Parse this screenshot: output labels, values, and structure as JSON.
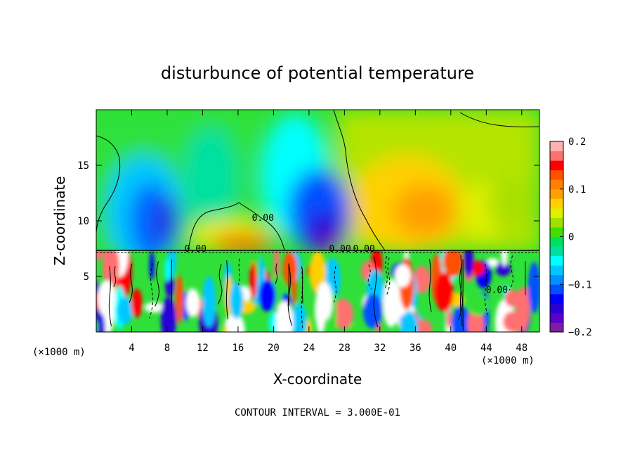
{
  "chart_data": {
    "type": "heatmap",
    "title": "disturbunce of potential temperature",
    "xlabel": "X-coordinate",
    "ylabel": "Z-coordinate",
    "x_unit_left": "(×1000 m)",
    "x_unit_right": "(×1000 m)",
    "footer": "CONTOUR INTERVAL = 3.000E-01",
    "xlim": [
      0,
      50
    ],
    "ylim": [
      0,
      20
    ],
    "x_ticks": [
      4,
      8,
      12,
      16,
      20,
      24,
      28,
      32,
      36,
      40,
      44,
      48
    ],
    "x_tick_labels": [
      "4",
      "8",
      "12",
      "16",
      "20",
      "24",
      "28",
      "32",
      "36",
      "40",
      "44",
      "48"
    ],
    "y_ticks": [
      5,
      10,
      15
    ],
    "y_tick_labels": [
      "5",
      "10",
      "15"
    ],
    "colorbar": {
      "range": [
        -0.2,
        0.2
      ],
      "tick_values": [
        0.2,
        0.1,
        0,
        -0.1,
        -0.2
      ],
      "tick_labels": [
        "0.2",
        "0.1",
        "0",
        "−0.1",
        "−0.2"
      ],
      "colors": [
        "#7a1fa2",
        "#5a00c8",
        "#2a00d8",
        "#0000ff",
        "#0050ff",
        "#0090ff",
        "#00c8ff",
        "#00ffff",
        "#00e0a0",
        "#00e060",
        "#40e000",
        "#a0e000",
        "#e0f000",
        "#ffd000",
        "#ffa000",
        "#ff8000",
        "#ff5000",
        "#ff0000",
        "#ff7070",
        "#ffb0b0"
      ]
    },
    "contour_labels": [
      {
        "text": "0.00",
        "x": 18.8,
        "z": 10.0
      },
      {
        "text": "0.00",
        "x": 11.2,
        "z": 7.2
      },
      {
        "text": "0.00",
        "x": 27.5,
        "z": 7.2
      },
      {
        "text": "0.00",
        "x": 30.2,
        "z": 7.2
      },
      {
        "text": "0.00",
        "x": 45.2,
        "z": 3.5
      }
    ],
    "field_description_blobs": [
      {
        "x": 5,
        "z": 11,
        "v": -0.12
      },
      {
        "x": 8,
        "z": 11,
        "v": -0.16
      },
      {
        "x": 12,
        "z": 15,
        "v": -0.05
      },
      {
        "x": 17,
        "z": 9,
        "v": 0.12
      },
      {
        "x": 24,
        "z": 15,
        "v": -0.09
      },
      {
        "x": 27,
        "z": 9,
        "v": -0.18
      },
      {
        "x": 38,
        "z": 15,
        "v": 0.07
      },
      {
        "x": 40,
        "z": 10.5,
        "v": 0.12
      },
      {
        "x": 46,
        "z": 11,
        "v": 0.08
      },
      {
        "x": 4,
        "z": 18,
        "v": 0.01
      },
      {
        "x": 32,
        "z": 19,
        "v": 0.05
      }
    ]
  }
}
